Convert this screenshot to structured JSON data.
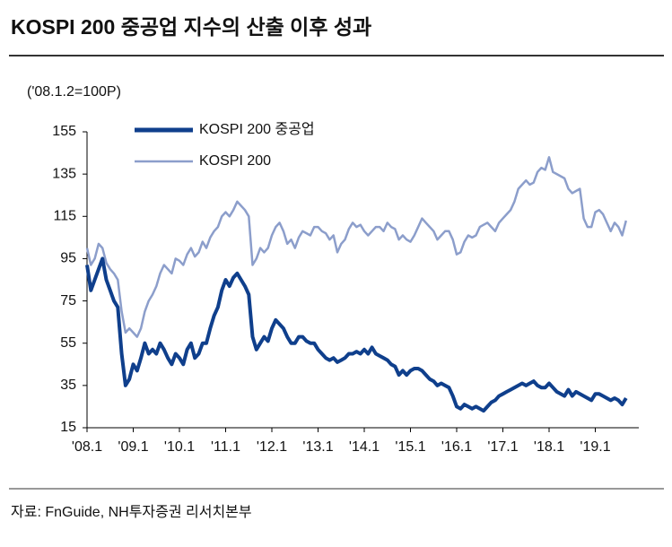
{
  "title": "KOSPI 200 중공업 지수의 산출 이후 성과",
  "source": "자료: FnGuide, NH투자증권 리서치본부",
  "chart_data": {
    "type": "line",
    "unit_label": "('08.1.2=100P)",
    "x": [
      "'08.1",
      "'08.2",
      "'08.3",
      "'08.4",
      "'08.5",
      "'08.6",
      "'08.7",
      "'08.8",
      "'08.9",
      "'08.10",
      "'08.11",
      "'08.12",
      "'09.1",
      "'09.2",
      "'09.3",
      "'09.4",
      "'09.5",
      "'09.6",
      "'09.7",
      "'09.8",
      "'09.9",
      "'09.10",
      "'09.11",
      "'09.12",
      "'10.1",
      "'10.2",
      "'10.3",
      "'10.4",
      "'10.5",
      "'10.6",
      "'10.7",
      "'10.8",
      "'10.9",
      "'10.10",
      "'10.11",
      "'10.12",
      "'11.1",
      "'11.2",
      "'11.3",
      "'11.4",
      "'11.5",
      "'11.6",
      "'11.7",
      "'11.8",
      "'11.9",
      "'11.10",
      "'11.11",
      "'11.12",
      "'12.1",
      "'12.2",
      "'12.3",
      "'12.4",
      "'12.5",
      "'12.6",
      "'12.7",
      "'12.8",
      "'12.9",
      "'12.10",
      "'12.11",
      "'12.12",
      "'13.1",
      "'13.2",
      "'13.3",
      "'13.4",
      "'13.5",
      "'13.6",
      "'13.7",
      "'13.8",
      "'13.9",
      "'13.10",
      "'13.11",
      "'13.12",
      "'14.1",
      "'14.2",
      "'14.3",
      "'14.4",
      "'14.5",
      "'14.6",
      "'14.7",
      "'14.8",
      "'14.9",
      "'14.10",
      "'14.11",
      "'14.12",
      "'15.1",
      "'15.2",
      "'15.3",
      "'15.4",
      "'15.5",
      "'15.6",
      "'15.7",
      "'15.8",
      "'15.9",
      "'15.10",
      "'15.11",
      "'15.12",
      "'16.1",
      "'16.2",
      "'16.3",
      "'16.4",
      "'16.5",
      "'16.6",
      "'16.7",
      "'16.8",
      "'16.9",
      "'16.10",
      "'16.11",
      "'16.12",
      "'17.1",
      "'17.2",
      "'17.3",
      "'17.4",
      "'17.5",
      "'17.6",
      "'17.7",
      "'17.8",
      "'17.9",
      "'17.10",
      "'17.11",
      "'17.12",
      "'18.1",
      "'18.2",
      "'18.3",
      "'18.4",
      "'18.5",
      "'18.6",
      "'18.7",
      "'18.8",
      "'18.9",
      "'18.10",
      "'18.11",
      "'18.12",
      "'19.1",
      "'19.2",
      "'19.3",
      "'19.4",
      "'19.5",
      "'19.6",
      "'19.7",
      "'19.8",
      "'19.9"
    ],
    "series": [
      {
        "name": "KOSPI 200 중공업",
        "color": "#0f3f8c",
        "values": [
          92,
          80,
          85,
          90,
          95,
          85,
          80,
          75,
          72,
          50,
          35,
          38,
          45,
          42,
          48,
          55,
          50,
          52,
          50,
          55,
          52,
          48,
          45,
          50,
          48,
          45,
          52,
          55,
          48,
          50,
          55,
          55,
          62,
          68,
          72,
          80,
          85,
          82,
          86,
          88,
          85,
          82,
          78,
          58,
          52,
          55,
          58,
          56,
          62,
          66,
          64,
          62,
          58,
          55,
          55,
          58,
          58,
          56,
          55,
          55,
          52,
          50,
          48,
          47,
          48,
          46,
          47,
          48,
          50,
          50,
          51,
          50,
          52,
          50,
          53,
          50,
          49,
          48,
          47,
          45,
          44,
          40,
          42,
          40,
          42,
          43,
          43,
          42,
          40,
          38,
          37,
          35,
          36,
          35,
          34,
          30,
          25,
          24,
          26,
          25,
          24,
          25,
          24,
          23,
          25,
          27,
          28,
          30,
          31,
          32,
          33,
          34,
          35,
          36,
          35,
          36,
          37,
          35,
          34,
          34,
          36,
          34,
          32,
          31,
          30,
          33,
          30,
          32,
          31,
          30,
          29,
          28,
          31,
          31,
          30,
          29,
          28,
          29,
          28,
          26,
          29
        ]
      },
      {
        "name": "KOSPI 200",
        "color": "#8c9ecb",
        "values": [
          100,
          92,
          95,
          102,
          100,
          93,
          90,
          88,
          85,
          70,
          60,
          62,
          60,
          58,
          62,
          70,
          75,
          78,
          82,
          88,
          92,
          90,
          88,
          95,
          94,
          92,
          97,
          100,
          96,
          98,
          103,
          100,
          105,
          108,
          110,
          115,
          117,
          115,
          118,
          122,
          120,
          118,
          115,
          92,
          95,
          100,
          98,
          100,
          106,
          110,
          112,
          108,
          102,
          104,
          100,
          105,
          108,
          107,
          106,
          110,
          110,
          108,
          107,
          104,
          106,
          98,
          102,
          104,
          109,
          112,
          110,
          111,
          108,
          106,
          108,
          110,
          110,
          108,
          112,
          110,
          109,
          104,
          106,
          104,
          103,
          106,
          110,
          114,
          112,
          110,
          108,
          104,
          106,
          108,
          108,
          104,
          97,
          98,
          103,
          106,
          105,
          106,
          110,
          111,
          112,
          110,
          108,
          112,
          114,
          116,
          118,
          122,
          128,
          130,
          132,
          130,
          131,
          136,
          138,
          137,
          143,
          136,
          135,
          134,
          133,
          128,
          126,
          127,
          128,
          114,
          110,
          110,
          117,
          118,
          116,
          112,
          108,
          112,
          110,
          106,
          113
        ]
      }
    ],
    "ylim": [
      15,
      155
    ],
    "yticks": [
      15,
      35,
      55,
      75,
      95,
      115,
      135,
      155
    ],
    "xticks": [
      "'08.1",
      "'09.1",
      "'10.1",
      "'11.1",
      "'12.1",
      "'13.1",
      "'14.1",
      "'15.1",
      "'16.1",
      "'17.1",
      "'18.1",
      "'19.1"
    ]
  }
}
